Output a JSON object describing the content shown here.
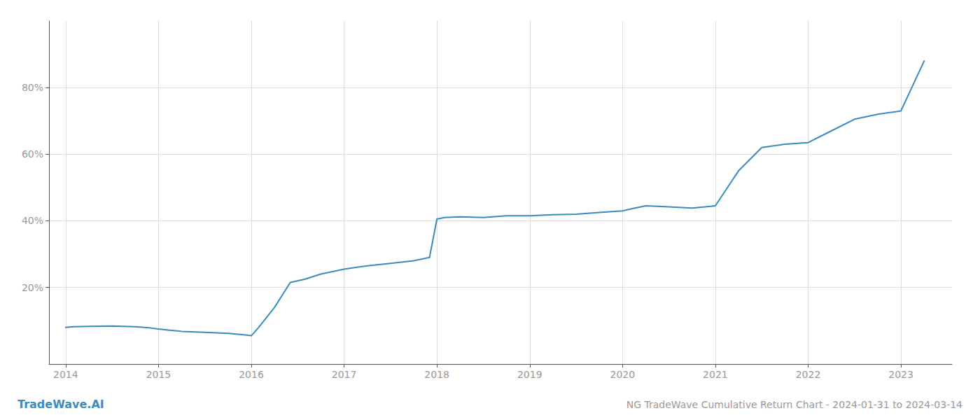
{
  "chart_data": {
    "type": "line",
    "title": "NG TradeWave Cumulative Return Chart - 2024-01-31 to 2024-03-14",
    "annotations": [
      "TradeWave.AI"
    ],
    "color": "#3a8bbf",
    "x": [
      2014.0,
      2014.08,
      2014.25,
      2014.5,
      2014.75,
      2014.92,
      2015.0,
      2015.1,
      2015.25,
      2015.5,
      2015.75,
      2015.92,
      2016.0,
      2016.08,
      2016.25,
      2016.42,
      2016.58,
      2016.75,
      2016.92,
      2017.0,
      2017.25,
      2017.5,
      2017.75,
      2017.92,
      2018.0,
      2018.08,
      2018.25,
      2018.5,
      2018.75,
      2019.0,
      2019.25,
      2019.5,
      2019.75,
      2020.0,
      2020.08,
      2020.25,
      2020.5,
      2020.75,
      2021.0,
      2021.25,
      2021.5,
      2021.75,
      2022.0,
      2022.25,
      2022.5,
      2022.75,
      2023.0,
      2023.25
    ],
    "values": [
      8,
      8.2,
      8.3,
      8.4,
      8.2,
      7.8,
      7.5,
      7.2,
      6.8,
      6.5,
      6.2,
      5.8,
      5.5,
      8.0,
      14.0,
      21.5,
      22.5,
      24.0,
      25.0,
      25.5,
      26.5,
      27.2,
      28.0,
      29.0,
      40.5,
      41.0,
      41.2,
      41.0,
      41.5,
      41.5,
      41.8,
      42.0,
      42.5,
      43.0,
      43.5,
      44.5,
      44.2,
      43.8,
      44.5,
      55.0,
      62.0,
      63.0,
      63.5,
      67.0,
      70.5,
      72.0,
      73.0,
      88.0
    ],
    "xlim": [
      2013.82,
      2023.55
    ],
    "xticks": [
      2014,
      2015,
      2016,
      2017,
      2018,
      2019,
      2020,
      2021,
      2022,
      2023
    ],
    "ylim": [
      -3,
      100
    ],
    "yticks": [
      {
        "value": 20,
        "label": "20%"
      },
      {
        "value": 40,
        "label": "40%"
      },
      {
        "value": 60,
        "label": "60%"
      },
      {
        "value": 80,
        "label": "80%"
      }
    ],
    "grid": true
  }
}
